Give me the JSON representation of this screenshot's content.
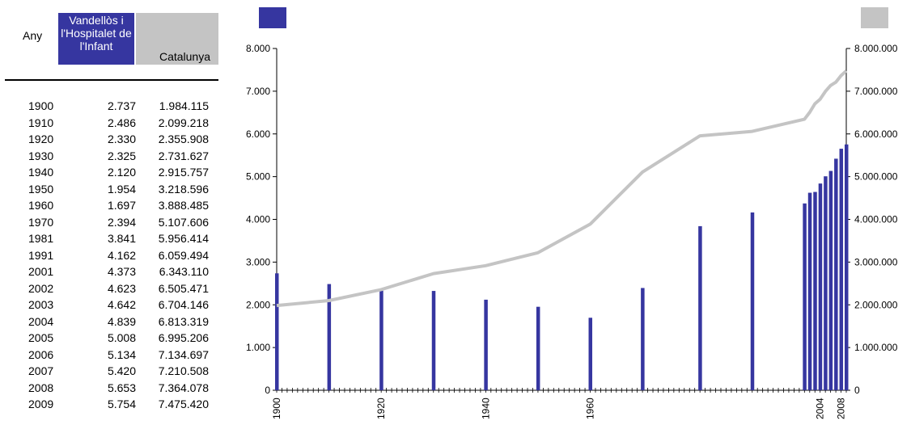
{
  "table": {
    "header_year": "Any",
    "header_local": "Vandellòs i l'Hospitalet de l'Infant",
    "header_region": "Catalunya",
    "rows": [
      {
        "year": "1900",
        "local": "2.737",
        "region": "1.984.115"
      },
      {
        "year": "1910",
        "local": "2.486",
        "region": "2.099.218"
      },
      {
        "year": "1920",
        "local": "2.330",
        "region": "2.355.908"
      },
      {
        "year": "1930",
        "local": "2.325",
        "region": "2.731.627"
      },
      {
        "year": "1940",
        "local": "2.120",
        "region": "2.915.757"
      },
      {
        "year": "1950",
        "local": "1.954",
        "region": "3.218.596"
      },
      {
        "year": "1960",
        "local": "1.697",
        "region": "3.888.485"
      },
      {
        "year": "1970",
        "local": "2.394",
        "region": "5.107.606"
      },
      {
        "year": "1981",
        "local": "3.841",
        "region": "5.956.414"
      },
      {
        "year": "1991",
        "local": "4.162",
        "region": "6.059.494"
      },
      {
        "year": "2001",
        "local": "4.373",
        "region": "6.343.110"
      },
      {
        "year": "2002",
        "local": "4.623",
        "region": "6.505.471"
      },
      {
        "year": "2003",
        "local": "4.642",
        "region": "6.704.146"
      },
      {
        "year": "2004",
        "local": "4.839",
        "region": "6.813.319"
      },
      {
        "year": "2005",
        "local": "5.008",
        "region": "6.995.206"
      },
      {
        "year": "2006",
        "local": "5.134",
        "region": "7.134.697"
      },
      {
        "year": "2007",
        "local": "5.420",
        "region": "7.210.508"
      },
      {
        "year": "2008",
        "local": "5.653",
        "region": "7.364.078"
      },
      {
        "year": "2009",
        "local": "5.754",
        "region": "7.475.420"
      }
    ]
  },
  "chart_data": {
    "type": "bar",
    "x": [
      1900,
      1910,
      1920,
      1930,
      1940,
      1950,
      1960,
      1970,
      1981,
      1991,
      2001,
      2002,
      2003,
      2004,
      2005,
      2006,
      2007,
      2008,
      2009
    ],
    "series": [
      {
        "kind": "bar",
        "axis": "left",
        "color": "#3636a0",
        "values": [
          2737,
          2486,
          2330,
          2325,
          2120,
          1954,
          1697,
          2394,
          3841,
          4162,
          4373,
          4623,
          4642,
          4839,
          5008,
          5134,
          5420,
          5653,
          5754
        ]
      },
      {
        "kind": "line",
        "axis": "right",
        "color": "#c4c4c4",
        "values": [
          1984115,
          2099218,
          2355908,
          2731627,
          2915757,
          3218596,
          3888485,
          5107606,
          5956414,
          6059494,
          6343110,
          6505471,
          6704146,
          6813319,
          6995206,
          7134697,
          7210508,
          7364078,
          7475420
        ]
      }
    ],
    "xlim": [
      1900,
      2009
    ],
    "ylim_left": [
      0,
      8000
    ],
    "ylim_right": [
      0,
      8000000
    ],
    "yticks_left": [
      "0",
      "1.000",
      "2.000",
      "3.000",
      "4.000",
      "5.000",
      "6.000",
      "7.000",
      "8.000"
    ],
    "yticks_right": [
      "0",
      "1.000.000",
      "2.000.000",
      "3.000.000",
      "4.000.000",
      "5.000.000",
      "6.000.000",
      "7.000.000",
      "8.000.000"
    ],
    "xtick_labels": [
      {
        "year": 1900,
        "label": "1900"
      },
      {
        "year": 1920,
        "label": "1920"
      },
      {
        "year": 1940,
        "label": "1940"
      },
      {
        "year": 1960,
        "label": "1960"
      },
      {
        "year": 2004,
        "label": "2004"
      },
      {
        "year": 2008,
        "label": "2008"
      }
    ],
    "grid": false,
    "legend": "swatches only, top-left (bar) and top-right (line)"
  }
}
